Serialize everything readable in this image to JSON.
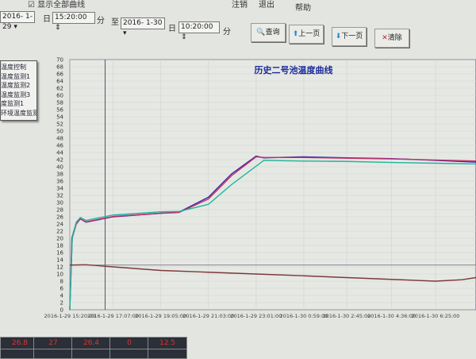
{
  "menu": {
    "show_all_label": "显示全部曲线",
    "items": [
      "注销",
      "退出",
      "帮助"
    ]
  },
  "query": {
    "start_date": "2016- 1-29",
    "day_label": "日",
    "start_time": "15:20:00",
    "min_label": "分",
    "to_label": "至",
    "end_date": "2016- 1-30",
    "end_time": "10:20:00"
  },
  "buttons": {
    "query": "查询",
    "prev": "上一页",
    "next": "下一页",
    "clear": "清除"
  },
  "legend": [
    "温度控制",
    "温度监测1",
    "温度监测2",
    "温度监测3",
    "度监测1",
    "环境温度监测"
  ],
  "readouts": [
    "26.8",
    "27",
    "26.4",
    "0",
    "12.5"
  ],
  "chart_data": {
    "type": "line",
    "title": "历史二号池温度曲线",
    "ylim": [
      0,
      70
    ],
    "yticks_step": 2,
    "xlim": [
      "2016-01-29T15:20",
      "2016-01-30T08:05"
    ],
    "xtick_labels": [
      "2016-1-29 15:20:00",
      "2016-1-29 17:07:00",
      "2016-1-29 19:05:00",
      "2016-1-29 21:03:00",
      "2016-1-29 23:01:00",
      "2016-1-30 0:59:00",
      "2016-1-30 2:45:00",
      "2016-1-30 4:36:00",
      "2016-1-30 6:25:00"
    ],
    "xtick_times": [
      "2016-01-29T15:20",
      "2016-01-29T17:07",
      "2016-01-29T19:05",
      "2016-01-29T21:03",
      "2016-01-29T23:01",
      "2016-01-30T00:59",
      "2016-01-30T02:45",
      "2016-01-30T04:36",
      "2016-01-30T06:25"
    ],
    "grid": true,
    "cursor": {
      "time": "2016-01-29T17:07",
      "value": 12.5
    },
    "series": [
      {
        "color": "#3a2aa8",
        "points": [
          [
            "2016-01-29T15:20",
            0
          ],
          [
            "2016-01-29T15:25",
            20
          ],
          [
            "2016-01-29T15:35",
            24
          ],
          [
            "2016-01-29T15:45",
            25.5
          ],
          [
            "2016-01-29T16:00",
            24.5
          ],
          [
            "2016-01-29T17:07",
            26
          ],
          [
            "2016-01-29T19:05",
            27
          ],
          [
            "2016-01-29T19:50",
            27.3
          ],
          [
            "2016-01-29T21:03",
            31.5
          ],
          [
            "2016-01-29T22:00",
            38
          ],
          [
            "2016-01-29T23:01",
            43
          ],
          [
            "2016-01-29T23:20",
            42.5
          ],
          [
            "2016-01-30T00:59",
            42.8
          ],
          [
            "2016-01-30T02:45",
            42.5
          ],
          [
            "2016-01-30T04:36",
            42.3
          ],
          [
            "2016-01-30T06:25",
            41.8
          ],
          [
            "2016-01-30T08:05",
            41.3
          ]
        ]
      },
      {
        "color": "#c0306a",
        "points": [
          [
            "2016-01-29T15:20",
            0
          ],
          [
            "2016-01-29T15:26",
            20
          ],
          [
            "2016-01-29T15:36",
            24
          ],
          [
            "2016-01-29T15:46",
            25.4
          ],
          [
            "2016-01-29T16:00",
            24.6
          ],
          [
            "2016-01-29T17:07",
            26.1
          ],
          [
            "2016-01-29T19:05",
            27
          ],
          [
            "2016-01-29T19:50",
            27.2
          ],
          [
            "2016-01-29T21:03",
            31
          ],
          [
            "2016-01-29T22:00",
            37.5
          ],
          [
            "2016-01-29T23:01",
            42.8
          ],
          [
            "2016-01-29T23:20",
            42.6
          ],
          [
            "2016-01-30T00:59",
            42.6
          ],
          [
            "2016-01-30T02:45",
            42.4
          ],
          [
            "2016-01-30T04:36",
            42.2
          ],
          [
            "2016-01-30T06:25",
            41.9
          ],
          [
            "2016-01-30T08:05",
            41.6
          ]
        ]
      },
      {
        "color": "#1fb59a",
        "points": [
          [
            "2016-01-29T15:20",
            0
          ],
          [
            "2016-01-29T15:26",
            20
          ],
          [
            "2016-01-29T15:36",
            24.5
          ],
          [
            "2016-01-29T15:46",
            25.8
          ],
          [
            "2016-01-29T16:00",
            25
          ],
          [
            "2016-01-29T17:07",
            26.5
          ],
          [
            "2016-01-29T19:05",
            27.4
          ],
          [
            "2016-01-29T19:50",
            27.5
          ],
          [
            "2016-01-29T21:03",
            29.5
          ],
          [
            "2016-01-29T22:00",
            35
          ],
          [
            "2016-01-29T23:20",
            41.8
          ],
          [
            "2016-01-30T00:59",
            41.6
          ],
          [
            "2016-01-30T02:45",
            41.5
          ],
          [
            "2016-01-30T04:36",
            41.2
          ],
          [
            "2016-01-30T06:25",
            41
          ],
          [
            "2016-01-30T08:05",
            40.8
          ]
        ]
      },
      {
        "color": "#7a3a3a",
        "points": [
          [
            "2016-01-29T15:20",
            12.5
          ],
          [
            "2016-01-29T16:00",
            12.6
          ],
          [
            "2016-01-29T17:07",
            12
          ],
          [
            "2016-01-29T19:05",
            11
          ],
          [
            "2016-01-29T21:03",
            10.5
          ],
          [
            "2016-01-29T23:01",
            10
          ],
          [
            "2016-01-30T00:59",
            9.5
          ],
          [
            "2016-01-30T02:45",
            9
          ],
          [
            "2016-01-30T04:36",
            8.5
          ],
          [
            "2016-01-30T06:25",
            8
          ],
          [
            "2016-01-30T07:30",
            8.4
          ],
          [
            "2016-01-30T08:05",
            9
          ]
        ]
      }
    ]
  }
}
